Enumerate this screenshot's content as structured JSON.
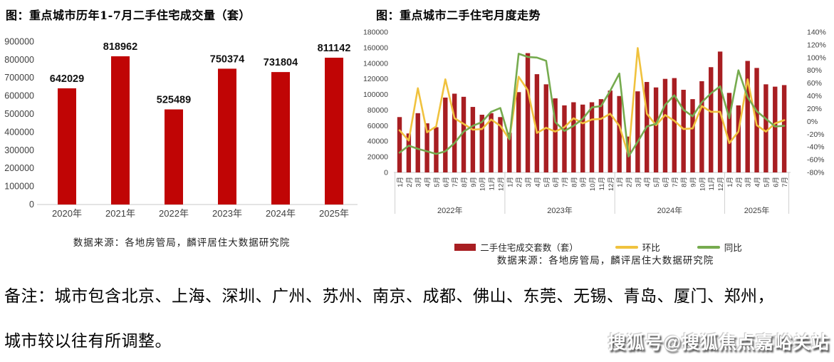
{
  "note": {
    "line1": "备注：城市包含北京、上海、深圳、广州、苏州、南京、成都、佛山、东莞、无锡、青岛、厦门、郑州，",
    "line2": "城市较以往有所调整。"
  },
  "watermark": {
    "text": "搜狐号@搜狐焦点嘉峪关站"
  },
  "chart_data": [
    {
      "type": "bar",
      "title": "图：重点城市历年1-7月二手住宅成交量（套）",
      "source": "数据来源：各地房管局，麟评居住大数据研究院",
      "categories": [
        "2020年",
        "2021年",
        "2022年",
        "2023年",
        "2024年",
        "2025年"
      ],
      "values": [
        642029,
        818962,
        525489,
        750374,
        731804,
        811142
      ],
      "ylim": [
        0,
        900000
      ],
      "ytick_step": 100000,
      "bar_color": "#c00505",
      "grid": "baseline-only",
      "value_labels": true
    },
    {
      "type": "bar+line-dual-axis",
      "title": "图：重点城市二手住宅月度走势",
      "source": "数据来源：各地房管局，麟评居住大数据研究院",
      "left_axis": {
        "min": 0,
        "max": 180000,
        "step": 20000
      },
      "right_axis": {
        "min": -80,
        "max": 140,
        "step": 20,
        "unit": "%"
      },
      "year_groups": [
        {
          "label": "2022年",
          "count": 12
        },
        {
          "label": "2023年",
          "count": 12
        },
        {
          "label": "2024年",
          "count": 12
        },
        {
          "label": "2025年",
          "count": 7
        }
      ],
      "x_labels": [
        "1月",
        "2月",
        "3月",
        "4月",
        "5月",
        "6月",
        "7月",
        "8月",
        "9月",
        "10月",
        "11月",
        "12月",
        "1月",
        "2月",
        "3月",
        "4月",
        "5月",
        "6月",
        "7月",
        "8月",
        "9月",
        "10月",
        "11月",
        "12月",
        "1月",
        "2月",
        "3月",
        "4月",
        "5月",
        "6月",
        "7月",
        "8月",
        "9月",
        "10月",
        "11月",
        "12月",
        "1月",
        "2月",
        "3月",
        "4月",
        "5月",
        "6月",
        "7月"
      ],
      "series": [
        {
          "name": "二手住宅成交套数（套）",
          "type": "bar",
          "axis": "left",
          "color": "#a81e22",
          "values": [
            71000,
            50000,
            76000,
            63000,
            58000,
            96000,
            101000,
            97000,
            84000,
            74000,
            76000,
            71000,
            51000,
            103000,
            153000,
            126000,
            113000,
            95000,
            86000,
            90000,
            87000,
            90000,
            94000,
            105000,
            98000,
            46000,
            104000,
            116000,
            109000,
            120000,
            121000,
            106000,
            94000,
            117000,
            135000,
            155000,
            102000,
            86000,
            143000,
            134000,
            113000,
            110000,
            112000
          ]
        },
        {
          "name": "环比",
          "type": "line",
          "axis": "right",
          "color": "#f0c23e",
          "values": [
            -14,
            -30,
            52,
            -17,
            -8,
            66,
            5,
            -4,
            -13,
            -12,
            3,
            -7,
            -28,
            70,
            49,
            -18,
            -10,
            -16,
            -9,
            5,
            -3,
            3,
            4,
            12,
            -7,
            -53,
            115,
            12,
            -6,
            10,
            1,
            -12,
            -11,
            24,
            15,
            15,
            -34,
            -16,
            66,
            -6,
            -16,
            -3,
            2
          ]
        },
        {
          "name": "同比",
          "type": "line",
          "axis": "right",
          "color": "#76ab4f",
          "values": [
            -49,
            -38,
            -43,
            -47,
            -51,
            -47,
            -34,
            -16,
            -7,
            -1,
            15,
            21,
            -28,
            106,
            101,
            100,
            95,
            -1,
            -15,
            -7,
            4,
            22,
            24,
            48,
            75,
            -55,
            -32,
            -8,
            -4,
            26,
            41,
            18,
            8,
            30,
            44,
            55,
            5,
            80,
            38,
            16,
            4,
            -8,
            -7
          ]
        }
      ]
    }
  ]
}
